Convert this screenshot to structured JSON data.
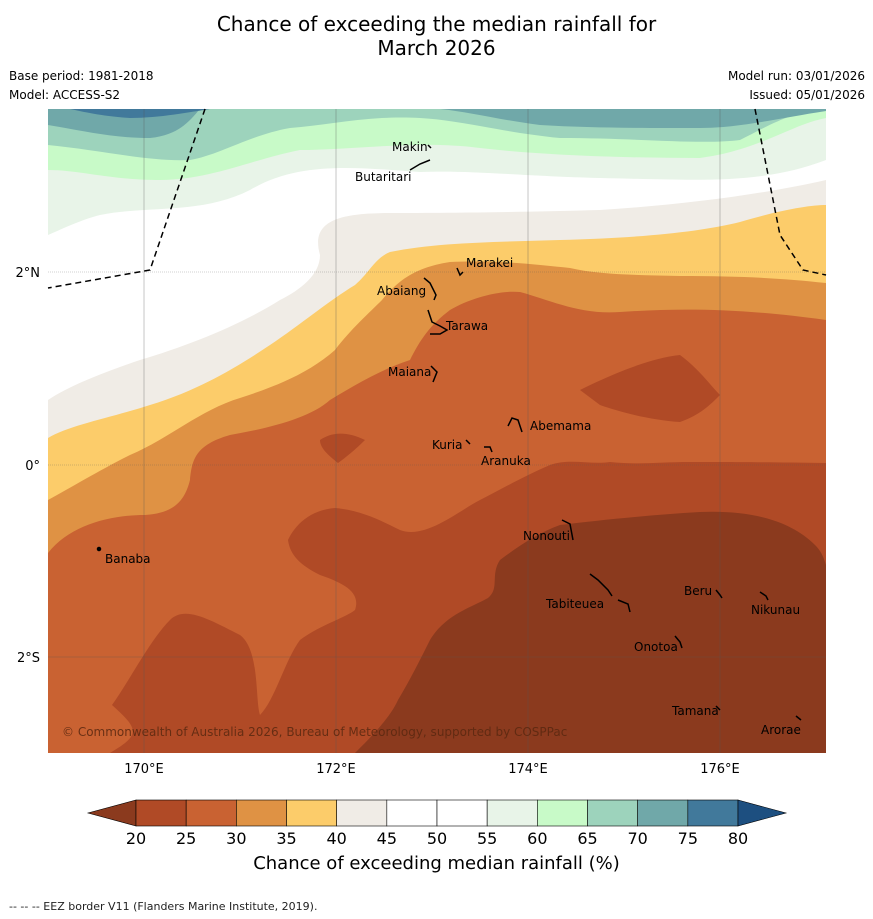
{
  "header": {
    "title_line1": "Chance of exceeding the median rainfall for",
    "title_line2": "March 2026",
    "base_period": "Base period: 1981-2018",
    "model": "Model: ACCESS-S2",
    "model_run": "Model run: 03/01/2026",
    "issued": "Issued: 05/01/2026"
  },
  "map": {
    "lon_labels": [
      "170°E",
      "172°E",
      "174°E",
      "176°E"
    ],
    "lat_labels": [
      "2°N",
      "0°",
      "2°S"
    ],
    "islands": [
      {
        "name": "Makin"
      },
      {
        "name": "Butaritari"
      },
      {
        "name": "Marakei"
      },
      {
        "name": "Abaiang"
      },
      {
        "name": "Tarawa"
      },
      {
        "name": "Maiana"
      },
      {
        "name": "Abemama"
      },
      {
        "name": "Kuria"
      },
      {
        "name": "Aranuka"
      },
      {
        "name": "Nonouti"
      },
      {
        "name": "Banaba"
      },
      {
        "name": "Beru"
      },
      {
        "name": "Nikunau"
      },
      {
        "name": "Tabiteuea"
      },
      {
        "name": "Onotoa"
      },
      {
        "name": "Tamana"
      },
      {
        "name": "Arorae"
      }
    ],
    "copyright": "© Commonwealth of Australia 2026, Bureau of Meteorology, supported by COSPPac"
  },
  "colorbar": {
    "ticks": [
      "20",
      "25",
      "30",
      "35",
      "40",
      "45",
      "50",
      "55",
      "60",
      "65",
      "70",
      "75",
      "80"
    ],
    "colors": [
      "#b04a26",
      "#c96232",
      "#df9244",
      "#fccc6a",
      "#f0ece6",
      "#ffffff",
      "#ffffff",
      "#e8f4e8",
      "#c8fac8",
      "#9dd3bc",
      "#70a8a9",
      "#41799b"
    ],
    "under_color": "#8b3a1e",
    "over_color": "#1d4f80",
    "label": "Chance of exceeding median rainfall (%)"
  },
  "footnote": "--  --  -- EEZ border V11 (Flanders Marine Institute, 2019)."
}
